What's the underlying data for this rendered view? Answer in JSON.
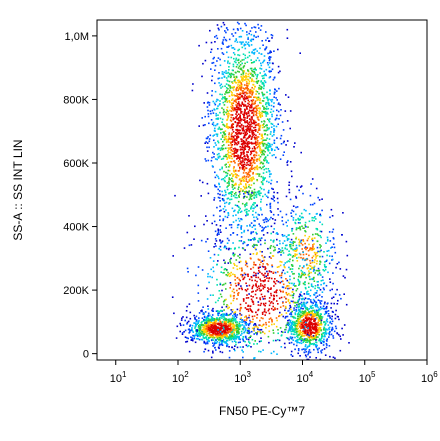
{
  "chart_data": {
    "type": "scatter",
    "title": "",
    "xlabel": "FN50 PE-Cy™7",
    "ylabel": "SS-A :: SS INT LIN",
    "x_scale": "log",
    "y_scale": "linear",
    "xlim": [
      5,
      1000000
    ],
    "ylim": [
      -20000,
      1050000
    ],
    "grid": false,
    "legend": "none",
    "x_ticks": [
      {
        "value": 10,
        "base": "10",
        "exp": "1"
      },
      {
        "value": 100,
        "base": "10",
        "exp": "2"
      },
      {
        "value": 1000,
        "base": "10",
        "exp": "3"
      },
      {
        "value": 10000,
        "base": "10",
        "exp": "4"
      },
      {
        "value": 100000,
        "base": "10",
        "exp": "5"
      },
      {
        "value": 1000000,
        "base": "10",
        "exp": "6"
      }
    ],
    "y_ticks": [
      {
        "value": 0,
        "label": "0"
      },
      {
        "value": 200000,
        "label": "200K"
      },
      {
        "value": 400000,
        "label": "400K"
      },
      {
        "value": 600000,
        "label": "600K"
      },
      {
        "value": 800000,
        "label": "800K"
      },
      {
        "value": 1000000,
        "label": "1,0M"
      }
    ],
    "density_colors": [
      "#0000cc",
      "#0044ff",
      "#00b7ff",
      "#00e0b0",
      "#33cc33",
      "#ffd000",
      "#ff6600",
      "#dd0000"
    ],
    "populations": [
      {
        "x_center_log10": 3.05,
        "x_spread_log10": 0.28,
        "y_center": 700000,
        "y_spread": 170000,
        "weight": 0.42
      },
      {
        "x_center_log10": 2.65,
        "x_spread_log10": 0.25,
        "y_center": 80000,
        "y_spread": 25000,
        "weight": 0.18
      },
      {
        "x_center_log10": 4.1,
        "x_spread_log10": 0.18,
        "y_center": 90000,
        "y_spread": 40000,
        "weight": 0.16
      },
      {
        "x_center_log10": 4.05,
        "x_spread_log10": 0.25,
        "y_center": 320000,
        "y_spread": 90000,
        "weight": 0.08
      },
      {
        "x_center_log10": 3.3,
        "x_spread_log10": 0.5,
        "y_center": 200000,
        "y_spread": 120000,
        "weight": 0.16
      }
    ]
  }
}
